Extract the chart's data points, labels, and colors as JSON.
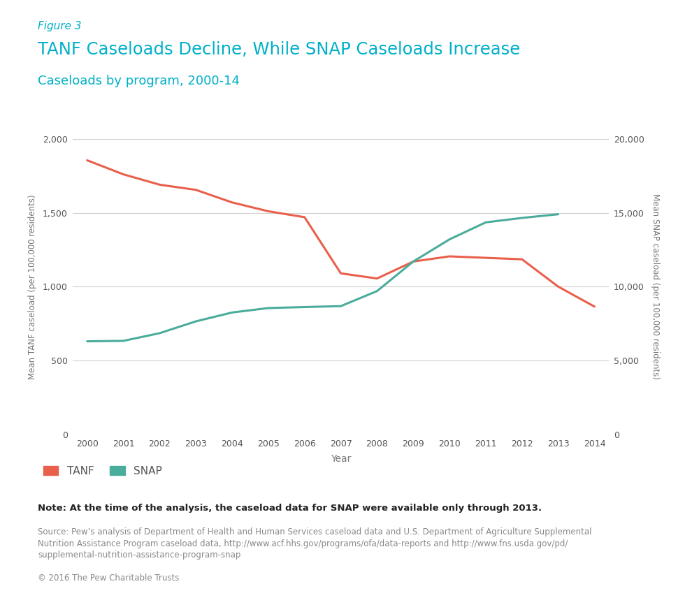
{
  "figure_label": "Figure 3",
  "title": "TANF Caseloads Decline, While SNAP Caseloads Increase",
  "subtitle": "Caseloads by program, 2000-14",
  "years": [
    2000,
    2001,
    2002,
    2003,
    2004,
    2005,
    2006,
    2007,
    2008,
    2009,
    2010,
    2011,
    2012,
    2013,
    2014
  ],
  "tanf": [
    1855,
    1760,
    1690,
    1655,
    1570,
    1510,
    1470,
    1090,
    1055,
    1170,
    1205,
    1195,
    1185,
    1000,
    865
  ],
  "snap": [
    6300,
    6330,
    6850,
    7650,
    8250,
    8550,
    8620,
    8680,
    9700,
    11700,
    13200,
    14350,
    14650,
    14900,
    null
  ],
  "tanf_color": "#e8604c",
  "snap_color": "#4aac9b",
  "left_ylim": [
    0,
    2000
  ],
  "right_ylim": [
    0,
    20000
  ],
  "left_yticks": [
    0,
    500,
    1000,
    1500,
    2000
  ],
  "right_yticks": [
    0,
    5000,
    10000,
    15000,
    20000
  ],
  "xlabel": "Year",
  "left_ylabel": "Mean TANF caseload (per 100,000 residents)",
  "right_ylabel": "Mean SNAP caseload (per 100,000 residents)",
  "note": "Note: At the time of the analysis, the caseload data for SNAP were available only through 2013.",
  "source_line1": "Source: Pew’s analysis of Department of Health and Human Services caseload data and U.S. Department of Agriculture Supplemental",
  "source_line2": "Nutrition Assistance Program caseload data, http://www.acf.hhs.gov/programs/ofa/data-reports and http://www.fns.usda.gov/pd/",
  "source_line3": "supplemental-nutrition-assistance-program-snap",
  "copyright": "© 2016 The Pew Charitable Trusts",
  "background_color": "#ffffff",
  "grid_color": "#d0d0d0",
  "title_color": "#00b0c8",
  "figure_label_color": "#00b0c8",
  "subtitle_color": "#00b0c8",
  "tick_label_color": "#555555",
  "axis_label_color": "#777777",
  "note_color": "#222222",
  "source_color": "#888888"
}
